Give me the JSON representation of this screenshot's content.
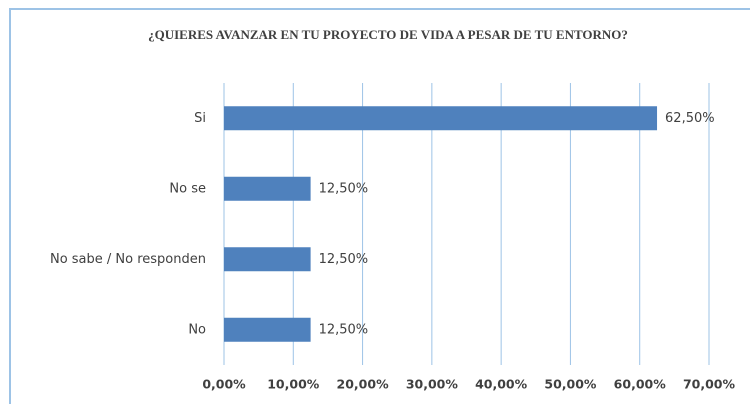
{
  "chart_data": {
    "type": "barh",
    "title": "¿QUIERES AVANZAR  EN TU PROYECTO DE VIDA A PESAR DE TU ENTORNO?",
    "categories": [
      "Si",
      "No se",
      "No sabe / No responden",
      "No"
    ],
    "values": [
      62.5,
      12.5,
      12.5,
      12.5
    ],
    "value_labels": [
      "62,50%",
      "12,50%",
      "12,50%",
      "12,50%"
    ],
    "color": "#4f81bd",
    "xlim": [
      0,
      70
    ],
    "xticks": [
      {
        "value": 0,
        "label": "0,00%"
      },
      {
        "value": 10,
        "label": "10,00%"
      },
      {
        "value": 20,
        "label": "20,00%"
      },
      {
        "value": 30,
        "label": "30,00%"
      },
      {
        "value": 40,
        "label": "40,00%"
      },
      {
        "value": 50,
        "label": "50,00%"
      },
      {
        "value": 60,
        "label": "60,00%"
      },
      {
        "value": 70,
        "label": "70,00%"
      }
    ],
    "grid": true
  }
}
